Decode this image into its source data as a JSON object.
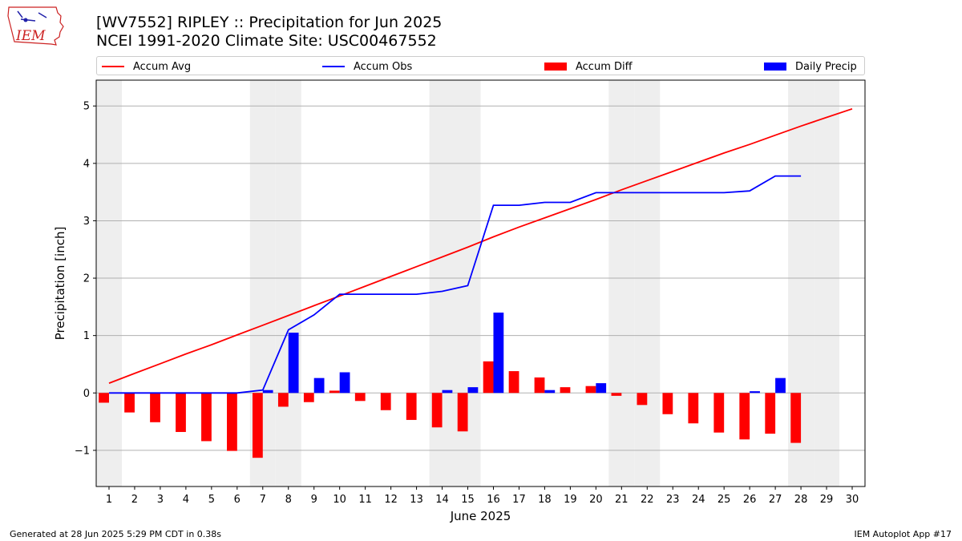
{
  "header": {
    "title_line1": "[WV7552] RIPLEY :: Precipitation for Jun 2025",
    "title_line2": "NCEI 1991-2020 Climate Site: USC00467552"
  },
  "logo": {
    "text": "IEM"
  },
  "footer": {
    "left": "Generated at 28 Jun 2025 5:29 PM CDT in 0.38s",
    "right": "IEM Autoplot App #17"
  },
  "legend": {
    "accum_avg": "Accum Avg",
    "accum_obs": "Accum Obs",
    "accum_diff": "Accum Diff",
    "daily_precip": "Daily Precip",
    "placement": "top, above plot"
  },
  "colors": {
    "accum_avg": "#ff0000",
    "accum_obs": "#0000ff",
    "accum_diff": "#ff0000",
    "daily_precip": "#0000ff",
    "weekend_band": "#eeeeee",
    "grid": "#b0b0b0"
  },
  "chart_data": {
    "type": "bar",
    "xlabel": "June 2025",
    "ylabel": "Precipitation [inch]",
    "xlim": [
      0.5,
      30.5
    ],
    "ylim": [
      -1.63,
      5.45
    ],
    "yticks": [
      -1,
      0,
      1,
      2,
      3,
      4,
      5
    ],
    "grid": true,
    "days": [
      1,
      2,
      3,
      4,
      5,
      6,
      7,
      8,
      9,
      10,
      11,
      12,
      13,
      14,
      15,
      16,
      17,
      18,
      19,
      20,
      21,
      22,
      23,
      24,
      25,
      26,
      27,
      28,
      29,
      30
    ],
    "weekend_days": [
      1,
      7,
      8,
      14,
      15,
      21,
      22,
      28,
      29
    ],
    "series": [
      {
        "name": "Accum Avg",
        "kind": "line",
        "x": [
          1,
          2,
          3,
          4,
          5,
          6,
          7,
          8,
          9,
          10,
          11,
          12,
          13,
          14,
          15,
          16,
          17,
          18,
          19,
          20,
          21,
          22,
          23,
          24,
          25,
          26,
          27,
          28,
          29,
          30
        ],
        "values": [
          0.17,
          0.34,
          0.51,
          0.68,
          0.84,
          1.01,
          1.18,
          1.35,
          1.52,
          1.69,
          1.86,
          2.03,
          2.2,
          2.37,
          2.54,
          2.72,
          2.89,
          3.05,
          3.21,
          3.37,
          3.54,
          3.7,
          3.86,
          4.02,
          4.18,
          4.33,
          4.49,
          4.65,
          4.8,
          4.95
        ]
      },
      {
        "name": "Accum Obs",
        "kind": "line",
        "x": [
          1,
          2,
          3,
          4,
          5,
          6,
          7,
          8,
          9,
          10,
          11,
          12,
          13,
          14,
          15,
          16,
          17,
          18,
          19,
          20,
          21,
          22,
          23,
          24,
          25,
          26,
          27,
          28
        ],
        "values": [
          0.0,
          0.0,
          0.0,
          0.0,
          0.0,
          0.0,
          0.05,
          1.1,
          1.36,
          1.72,
          1.72,
          1.72,
          1.72,
          1.77,
          1.87,
          3.27,
          3.27,
          3.32,
          3.32,
          3.49,
          3.49,
          3.49,
          3.49,
          3.49,
          3.49,
          3.52,
          3.78,
          3.78
        ]
      },
      {
        "name": "Accum Diff",
        "kind": "bar",
        "x": [
          1,
          2,
          3,
          4,
          5,
          6,
          7,
          8,
          9,
          10,
          11,
          12,
          13,
          14,
          15,
          16,
          17,
          18,
          19,
          20,
          21,
          22,
          23,
          24,
          25,
          26,
          27,
          28
        ],
        "values": [
          -0.17,
          -0.34,
          -0.51,
          -0.68,
          -0.84,
          -1.01,
          -1.13,
          -0.24,
          -0.16,
          0.04,
          -0.14,
          -0.3,
          -0.47,
          -0.6,
          -0.67,
          0.55,
          0.38,
          0.27,
          0.1,
          0.12,
          -0.05,
          -0.21,
          -0.37,
          -0.53,
          -0.69,
          -0.81,
          -0.71,
          -0.87
        ]
      },
      {
        "name": "Daily Precip",
        "kind": "bar",
        "x": [
          1,
          2,
          3,
          4,
          5,
          6,
          7,
          8,
          9,
          10,
          11,
          12,
          13,
          14,
          15,
          16,
          17,
          18,
          19,
          20,
          21,
          22,
          23,
          24,
          25,
          26,
          27,
          28
        ],
        "values": [
          0,
          0,
          0,
          0,
          0,
          0,
          0.05,
          1.05,
          0.26,
          0.36,
          0,
          0,
          0,
          0.05,
          0.1,
          1.4,
          0,
          0.05,
          0,
          0.17,
          0,
          0,
          0,
          0,
          0,
          0.03,
          0.26,
          0
        ]
      }
    ]
  }
}
